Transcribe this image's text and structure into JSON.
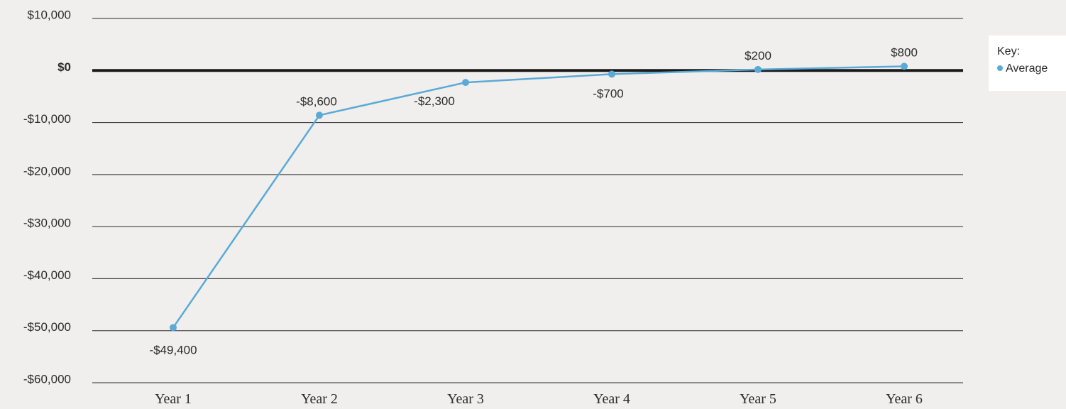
{
  "chart_data": {
    "type": "line",
    "categories": [
      "Year 1",
      "Year 2",
      "Year 3",
      "Year 4",
      "Year 5",
      "Year 6"
    ],
    "series": [
      {
        "name": "Average",
        "values": [
          -49400,
          -8600,
          -2300,
          -700,
          200,
          800
        ],
        "labels": [
          "-$49,400",
          "-$8,600",
          "-$2,300",
          "-$700",
          "$200",
          "$800"
        ]
      }
    ],
    "y_ticks": [
      10000,
      0,
      -10000,
      -20000,
      -30000,
      -40000,
      -50000,
      -60000
    ],
    "y_tick_labels": [
      "$10,000",
      "$0",
      "-$10,000",
      "-$20,000",
      "-$30,000",
      "-$40,000",
      "-$50,000",
      "-$60,000"
    ],
    "ylim": [
      -60000,
      10000
    ],
    "grid": true,
    "legend_title": "Key:",
    "legend_position": "top-right",
    "colors": {
      "series": "#5aaad6",
      "grid": "#2b2b2b",
      "zero_line": "#1a1a1a",
      "background": "#f0efed",
      "legend_background": "#ffffff",
      "text": "#2b2b2b"
    }
  }
}
